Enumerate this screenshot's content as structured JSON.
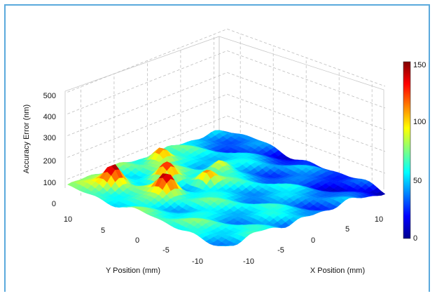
{
  "chart_data": {
    "type": "surface3d",
    "title": "",
    "zlabel": "Accuracy Error (nm)",
    "xlabel": "X Position (mm)",
    "ylabel": "Y Position (mm)",
    "x_ticks": [
      "-10",
      "-5",
      "0",
      "5",
      "10"
    ],
    "y_ticks": [
      "10",
      "5",
      "0",
      "-5",
      "-10"
    ],
    "z_ticks": [
      "0",
      "100",
      "200",
      "300",
      "400",
      "500"
    ],
    "xlim": [
      -12,
      12
    ],
    "ylim": [
      -12,
      12
    ],
    "zlim": [
      0,
      500
    ],
    "grid": true,
    "colorbar": {
      "ticks": [
        "0",
        "50",
        "100",
        "150"
      ],
      "clim": [
        0,
        150
      ],
      "placement": "right",
      "colormap": "jet"
    },
    "surface_peaks": [
      {
        "x": -8,
        "y": 9,
        "z": 150
      },
      {
        "x": -6,
        "y": 3,
        "z": 145
      },
      {
        "x": -3,
        "y": 6,
        "z": 130
      },
      {
        "x": 0,
        "y": 10,
        "z": 125
      },
      {
        "x": -1,
        "y": 2,
        "z": 120
      },
      {
        "x": 3,
        "y": 4,
        "z": 115
      }
    ]
  }
}
